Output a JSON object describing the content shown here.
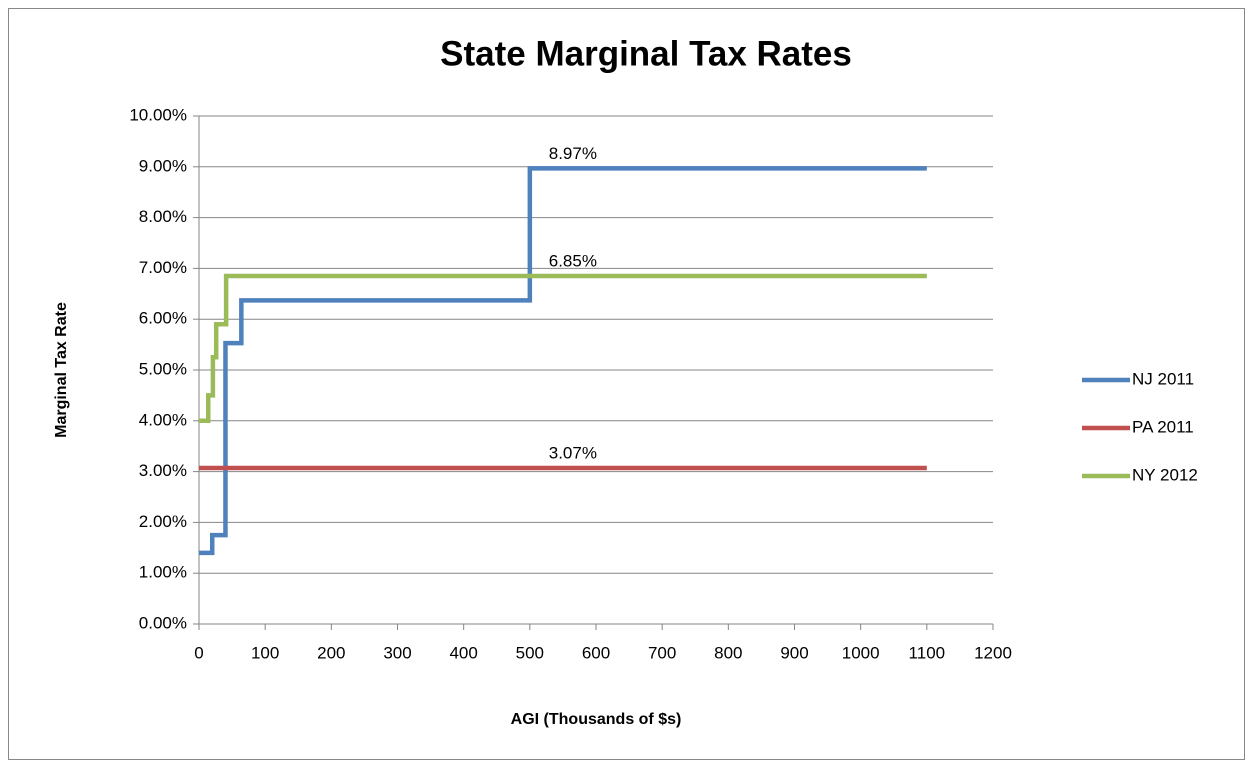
{
  "chart_data": {
    "type": "line",
    "title": "State Marginal Tax Rates",
    "x_label": "AGI (Thousands of $s)",
    "y_label": "Marginal Tax Rate",
    "xlim": [
      0,
      1200
    ],
    "xticks": [
      0,
      100,
      200,
      300,
      400,
      500,
      600,
      700,
      800,
      900,
      1000,
      1100,
      1200
    ],
    "ylim": [
      0,
      10
    ],
    "yticks": [
      {
        "value": 0,
        "label": "0.00%"
      },
      {
        "value": 1,
        "label": "1.00%"
      },
      {
        "value": 2,
        "label": "2.00%"
      },
      {
        "value": 3,
        "label": "3.00%"
      },
      {
        "value": 4,
        "label": "4.00%"
      },
      {
        "value": 5,
        "label": "5.00%"
      },
      {
        "value": 6,
        "label": "6.00%"
      },
      {
        "value": 7,
        "label": "7.00%"
      },
      {
        "value": 8,
        "label": "8.00%"
      },
      {
        "value": 9,
        "label": "9.00%"
      },
      {
        "value": 10,
        "label": "10.00%"
      }
    ],
    "grid": true,
    "legend": "right",
    "series": [
      {
        "name": "NJ 2011",
        "color": "#4f81bd",
        "x": [
          0,
          20,
          20,
          40,
          40,
          64,
          64,
          500,
          500,
          1100
        ],
        "values": [
          1.4,
          1.4,
          1.75,
          1.75,
          5.53,
          5.53,
          6.37,
          6.37,
          8.97,
          8.97
        ],
        "value_labels": [
          null,
          null,
          null,
          null,
          null,
          null,
          null,
          null,
          null,
          "8.97%"
        ]
      },
      {
        "name": "PA 2011",
        "color": "#c0504d",
        "x": [
          0,
          1100
        ],
        "values": [
          3.07,
          3.07
        ],
        "value_labels": [
          null,
          "3.07%"
        ]
      },
      {
        "name": "NY 2012",
        "color": "#9bbb59",
        "x": [
          0,
          14,
          14,
          21,
          21,
          26,
          26,
          41,
          41,
          1100
        ],
        "values": [
          4,
          4,
          4.5,
          4.5,
          5.25,
          5.25,
          5.9,
          5.9,
          6.85,
          6.85
        ],
        "value_labels": [
          null,
          null,
          null,
          null,
          null,
          null,
          null,
          null,
          null,
          "6.85%"
        ]
      }
    ]
  }
}
